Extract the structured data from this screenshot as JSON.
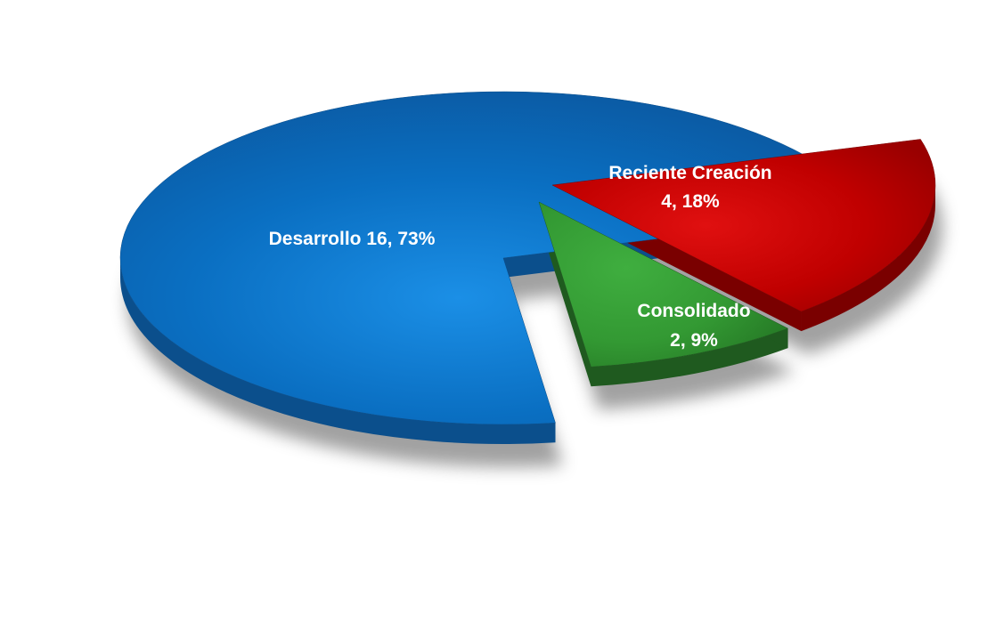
{
  "chart_data": {
    "type": "pie",
    "title": "",
    "style": "3d-exploded",
    "legend": "none",
    "categories": [
      "Desarrollo",
      "Reciente Creación",
      "Consolidado"
    ],
    "values": [
      16,
      4,
      2
    ],
    "percentages": [
      73,
      18,
      9
    ],
    "colors": [
      "#0a6fc2",
      "#c00000",
      "#339933"
    ],
    "side_colors": [
      "#0b4f8c",
      "#7a0000",
      "#1f5a1f"
    ],
    "labels": {
      "desarrollo": {
        "line1": "Desarrollo 16, 73%"
      },
      "reciente": {
        "line1": "Reciente Creación",
        "line2": "4, 18%"
      },
      "consolidado": {
        "line1": "Consolidado",
        "line2": "2, 9%"
      }
    }
  }
}
